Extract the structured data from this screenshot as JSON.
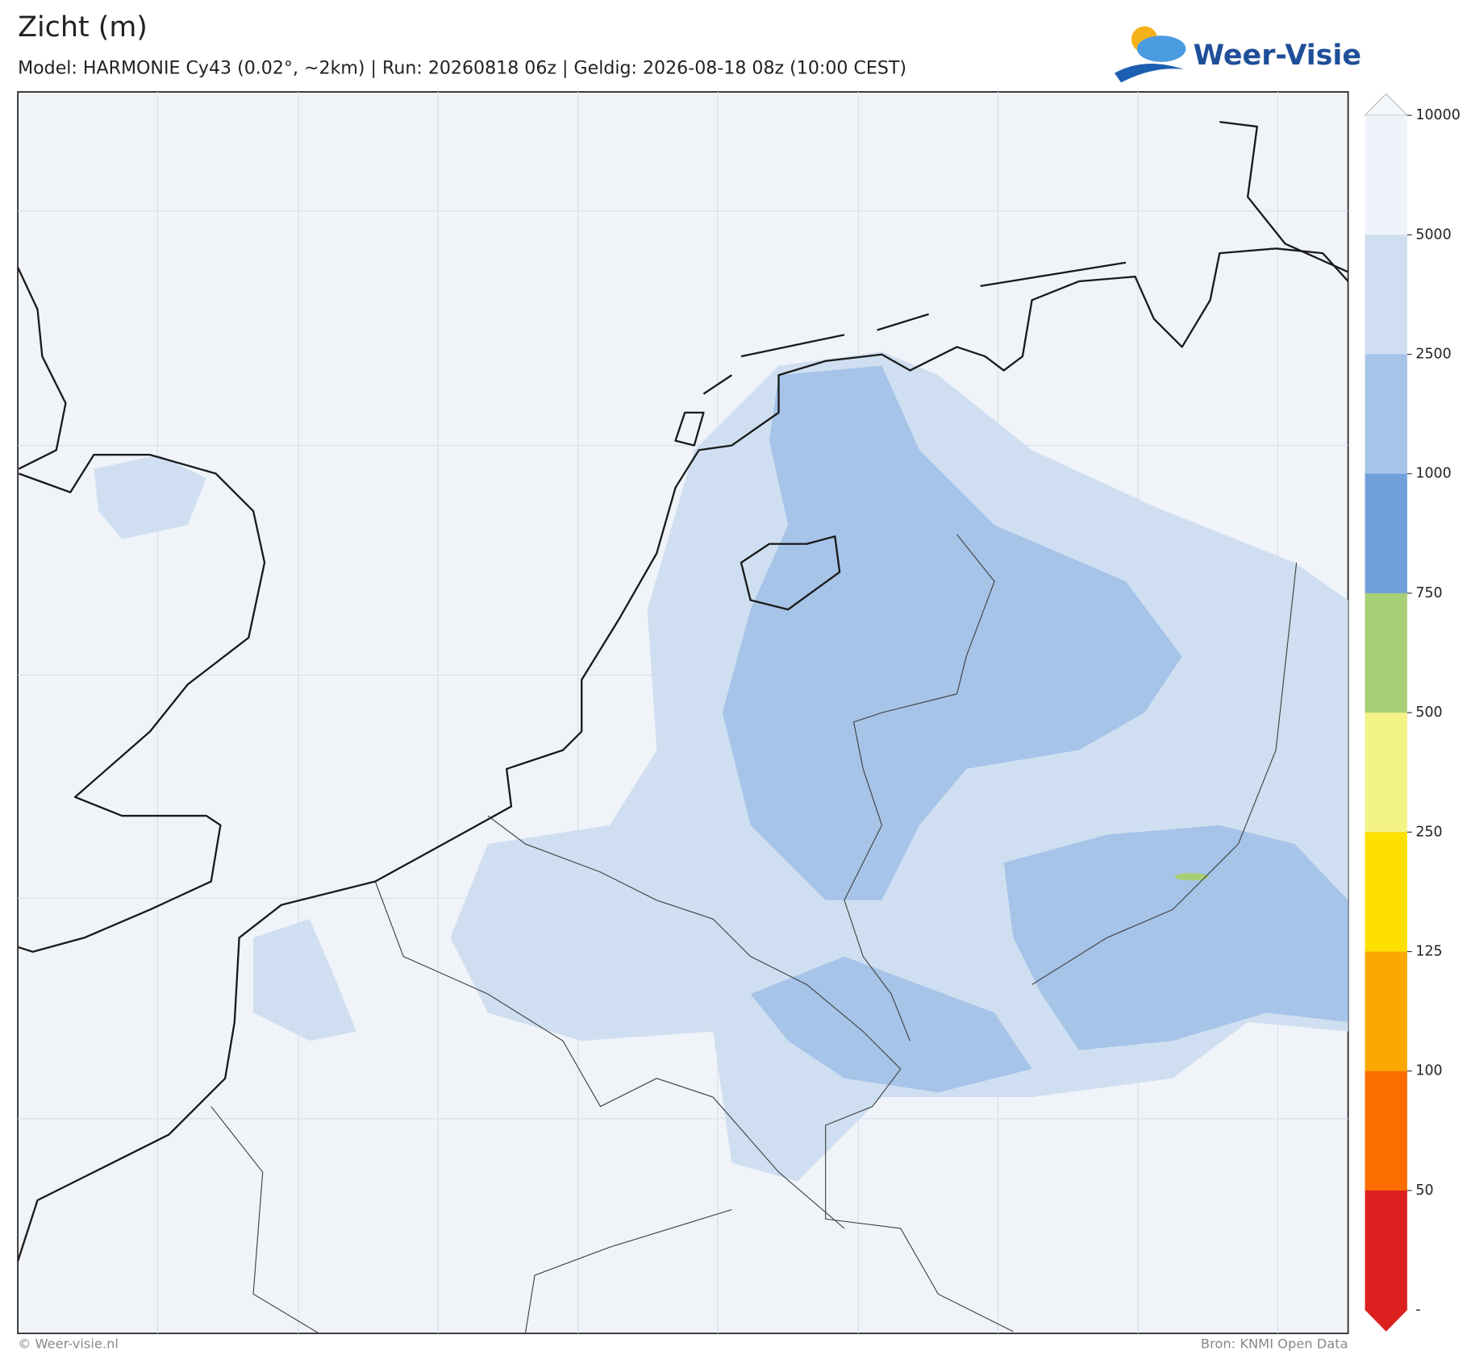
{
  "header": {
    "title": "Zicht (m)",
    "subtitle": "Model: HARMONIE Cy43 (0.02°, ~2km)  |  Run: 20260818 06z  |  Geldig: 2026-08-18 08z (10:00 CEST)",
    "logo": "Weer-Visie"
  },
  "colorbar": {
    "ticks": [
      10000,
      5000,
      2500,
      1000,
      750,
      500,
      250,
      125,
      100,
      50
    ],
    "bottom_label": "-",
    "over_color": "#f4f7fb",
    "colors": [
      "#eef3f9",
      "#cfdff1",
      "#a6c4e8",
      "#6fa0da",
      "#a8cf76",
      "#f3f286",
      "#fde000",
      "#fba800",
      "#fb6d00",
      "#dc2020"
    ],
    "under_color": "#dc2020"
  },
  "footer": {
    "left": "© Weer-visie.nl",
    "right": "Bron: KNMI Open Data"
  }
}
